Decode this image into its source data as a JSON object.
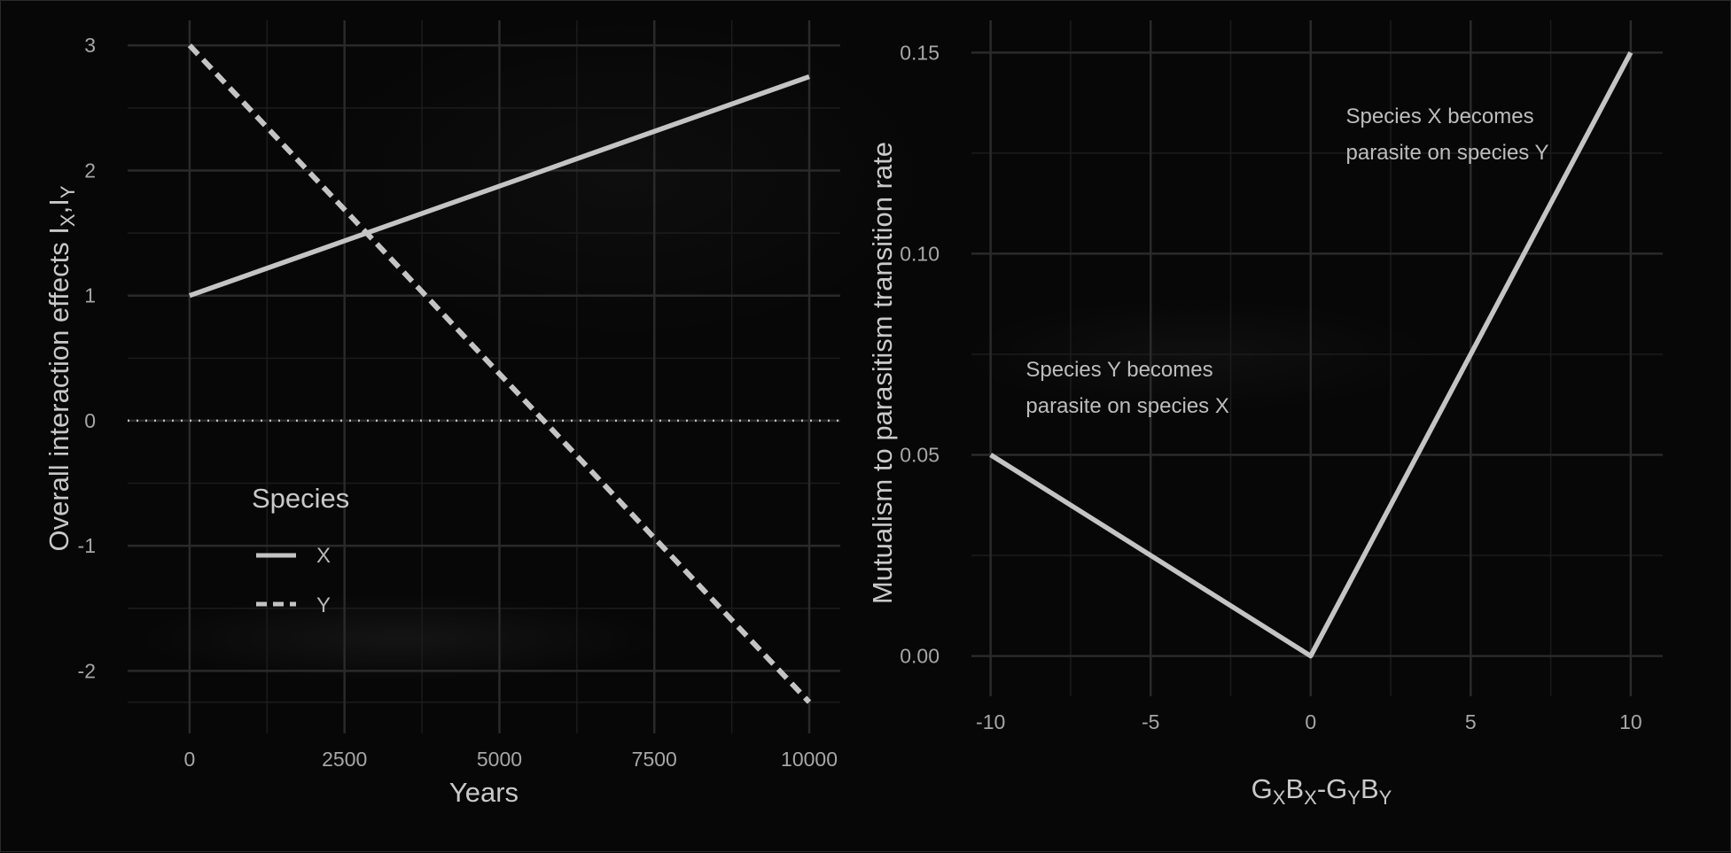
{
  "chart_data": [
    {
      "type": "line",
      "title": "",
      "xlabel": "Years",
      "ylabel": {
        "main": "Overall interaction effects I",
        "sub1": "X",
        "sep": ",I",
        "sub2": "Y"
      },
      "xlim": [
        -1000,
        10500
      ],
      "ylim": [
        -2.5,
        3.2
      ],
      "x_ticks": [
        0,
        2500,
        5000,
        7500,
        10000
      ],
      "x_tick_labels": [
        "0",
        "2500",
        "5000",
        "7500",
        "10000"
      ],
      "y_ticks": [
        -2,
        -1,
        0,
        1,
        2,
        3
      ],
      "y_tick_labels": [
        "-2",
        "-1",
        "0",
        "1",
        "2",
        "3"
      ],
      "grid": true,
      "reference_line": {
        "y": 0,
        "style": "dotted"
      },
      "legend": {
        "title": "Species",
        "position": "inside-bottom-left"
      },
      "series": [
        {
          "name": "X",
          "style": "solid",
          "x": [
            0,
            10000
          ],
          "y": [
            1,
            2.75
          ]
        },
        {
          "name": "Y",
          "style": "dashed",
          "x": [
            0,
            10000
          ],
          "y": [
            3,
            -2.25
          ]
        }
      ]
    },
    {
      "type": "line",
      "title": "",
      "xlabel": {
        "parts": [
          "G",
          "X",
          "B",
          "X",
          "-G",
          "Y",
          "B",
          "Y"
        ]
      },
      "ylabel": "Mutualism to parasitism transition rate",
      "xlim": [
        -10.6,
        11.0
      ],
      "ylim": [
        -0.01,
        0.158
      ],
      "x_ticks": [
        -10,
        -5,
        0,
        5,
        10
      ],
      "x_tick_labels": [
        "-10",
        "-5",
        "0",
        "5",
        "10"
      ],
      "y_ticks": [
        0,
        0.05,
        0.1,
        0.15
      ],
      "y_tick_labels": [
        "0.00",
        "0.05",
        "0.10",
        "0.15"
      ],
      "grid": true,
      "series": [
        {
          "style": "solid",
          "x": [
            -10,
            0,
            10
          ],
          "y": [
            0.05,
            0,
            0.15
          ]
        }
      ],
      "annotations": [
        {
          "lines": [
            "Species Y becomes",
            "parasite on species X"
          ],
          "x": -8.9,
          "y": 0.0695
        },
        {
          "lines": [
            "Species X becomes",
            "parasite on species Y"
          ],
          "x": 1.1,
          "y": 0.1325
        }
      ]
    }
  ],
  "colors": {
    "line": "#c4c4c4",
    "grid_major": "#2a2a2a",
    "grid_minor": "#1c1c1c",
    "text": "#c9c9c9",
    "tick_text": "#a6a6a6"
  }
}
